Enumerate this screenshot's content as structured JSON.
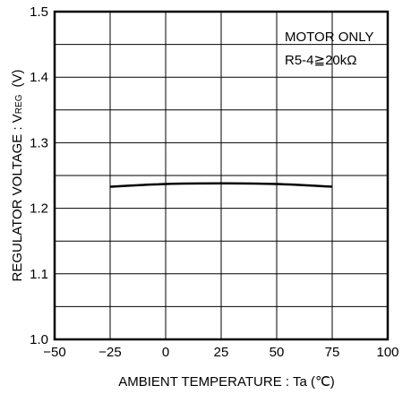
{
  "chart_data": {
    "type": "line",
    "xlabel": "AMBIENT TEMPERATURE : Ta  (℃)",
    "ylabel": "REGULATOR VOLTAGE : V",
    "ylabel_subscript": "REG",
    "ylabel_unit": "(V)",
    "xlim": [
      -50,
      100
    ],
    "ylim": [
      1.0,
      1.5
    ],
    "x_ticks": [
      -50,
      -25,
      0,
      25,
      50,
      75,
      100
    ],
    "y_ticks": [
      1.0,
      1.1,
      1.2,
      1.3,
      1.4,
      1.5
    ],
    "x_tick_labels": [
      "−50",
      "−25",
      "0",
      "25",
      "50",
      "75",
      "100"
    ],
    "y_tick_labels": [
      "1.0",
      "1.1",
      "1.2",
      "1.3",
      "1.4",
      "1.5"
    ],
    "grid": true,
    "annotation": [
      "MOTOR ONLY",
      "R5-4≧20kΩ"
    ],
    "series": [
      {
        "x": [
          -25,
          0,
          25,
          50,
          75
        ],
        "y": [
          1.233,
          1.237,
          1.238,
          1.237,
          1.233
        ]
      }
    ]
  }
}
